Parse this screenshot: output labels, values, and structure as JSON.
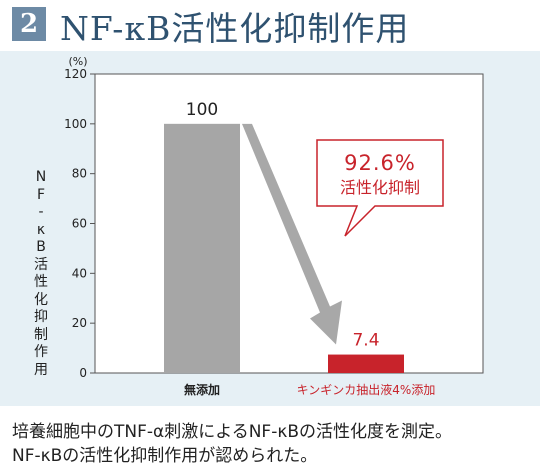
{
  "header": {
    "number": "2",
    "title": "NF-κB活性化抑制作用"
  },
  "chart_data": {
    "type": "bar",
    "unit": "(%)",
    "ylabel": "NF-κB活性化抑制作用",
    "ylim": [
      0,
      120
    ],
    "yticks": [
      0,
      20,
      40,
      60,
      80,
      100,
      120
    ],
    "categories": [
      "無添加",
      "キンギンカ抽出液4%添加"
    ],
    "values": [
      100,
      7.4
    ],
    "value_labels": [
      "100",
      "7.4"
    ],
    "colors": [
      "#a6a6a6",
      "#c8232b"
    ],
    "category_colors": [
      "#222222",
      "#c8232b"
    ],
    "grid": false,
    "callout": {
      "value": "92.6%",
      "label": "活性化抑制",
      "color": "#c8232b"
    },
    "arrow_color": "#a8a8a8"
  },
  "footer": {
    "line1": "培養細胞中のTNF-α刺激によるNF-κBの活性化度を測定。",
    "line2": "NF-κBの活性化抑制作用が認められた。"
  }
}
